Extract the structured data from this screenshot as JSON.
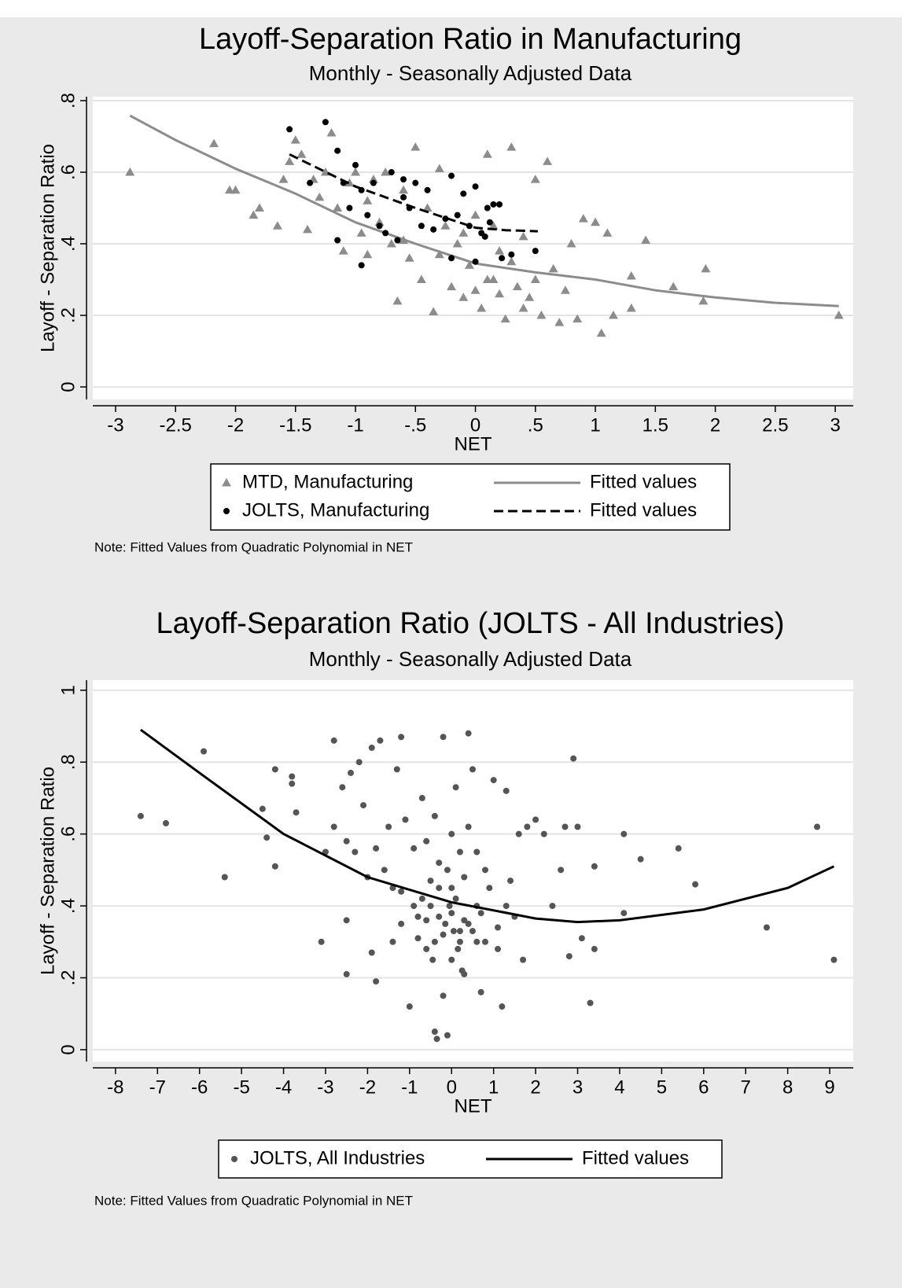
{
  "chart_data": [
    {
      "type": "scatter",
      "title": "Layoff-Separation Ratio in Manufacturing",
      "subtitle": "Monthly - Seasonally Adjusted Data",
      "x_label": "NET",
      "y_label": "Layoff - Separation Ratio",
      "note": "Note: Fitted Values from Quadratic Polynomial in NET",
      "xlim": [
        -3.19,
        3.15
      ],
      "ylim": [
        -0.035,
        0.811
      ],
      "xticks": [
        -3,
        {
          "value": -2.5,
          "label": "-2.5"
        },
        -2,
        {
          "value": -1.5,
          "label": "-1.5"
        },
        -1,
        {
          "value": -0.5,
          "label": "-.5"
        },
        0,
        {
          "value": 0.5,
          "label": ".5"
        },
        1,
        1.5,
        2,
        2.5,
        3
      ],
      "yticks": [
        0,
        {
          "value": 0.2,
          "label": ".2"
        },
        {
          "value": 0.4,
          "label": ".4"
        },
        {
          "value": 0.6,
          "label": ".6"
        },
        {
          "value": 0.8,
          "label": ".8"
        }
      ],
      "grid": true,
      "series": [
        {
          "name": "MTD, Manufacturing",
          "type": "scatter",
          "marker": "triangle",
          "color": "#8c8c8c",
          "x": [
            -2.88,
            -2.18,
            -2.05,
            -2.0,
            -1.85,
            -1.8,
            -1.65,
            -1.6,
            -1.55,
            -1.5,
            -1.45,
            -1.4,
            -1.35,
            -1.3,
            -1.25,
            -1.2,
            -1.15,
            -1.1,
            -1.05,
            -1.0,
            -0.95,
            -0.9,
            -0.85,
            -0.8,
            -0.75,
            -0.7,
            -0.65,
            -0.6,
            -0.55,
            -0.5,
            -0.45,
            -0.4,
            -0.35,
            -0.3,
            -0.25,
            -0.2,
            -0.15,
            -0.1,
            -0.05,
            0.0,
            0.05,
            0.1,
            0.15,
            0.2,
            0.25,
            0.3,
            0.35,
            0.4,
            0.45,
            0.5,
            0.55,
            0.6,
            0.65,
            0.7,
            0.75,
            0.8,
            0.85,
            0.9,
            1.0,
            1.05,
            1.1,
            1.15,
            1.3,
            1.3,
            1.42,
            1.65,
            1.92,
            1.9,
            3.03,
            -0.3,
            0.1,
            0.2,
            -0.1,
            0.3,
            0.0,
            0.4,
            -0.6,
            -0.9,
            0.15,
            0.5
          ],
          "values": [
            0.6,
            0.68,
            0.55,
            0.55,
            0.48,
            0.5,
            0.45,
            0.58,
            0.63,
            0.69,
            0.65,
            0.44,
            0.58,
            0.53,
            0.6,
            0.71,
            0.5,
            0.38,
            0.57,
            0.6,
            0.43,
            0.52,
            0.58,
            0.46,
            0.6,
            0.4,
            0.24,
            0.55,
            0.36,
            0.67,
            0.3,
            0.5,
            0.21,
            0.61,
            0.45,
            0.28,
            0.4,
            0.25,
            0.34,
            0.48,
            0.22,
            0.65,
            0.3,
            0.38,
            0.19,
            0.67,
            0.28,
            0.42,
            0.25,
            0.58,
            0.2,
            0.63,
            0.33,
            0.18,
            0.27,
            0.4,
            0.19,
            0.47,
            0.46,
            0.15,
            0.43,
            0.2,
            0.31,
            0.22,
            0.41,
            0.28,
            0.33,
            0.24,
            0.2,
            0.37,
            0.3,
            0.26,
            0.43,
            0.35,
            0.27,
            0.22,
            0.41,
            0.37,
            0.45,
            0.3
          ]
        },
        {
          "name": "Fitted values",
          "type": "line",
          "dash": "solid",
          "color": "#8c8c8c",
          "x": [
            -2.88,
            -2.5,
            -2,
            -1.5,
            -1,
            -0.5,
            0,
            0.5,
            1,
            1.5,
            2,
            2.5,
            3.03
          ],
          "values": [
            0.758,
            0.69,
            0.61,
            0.54,
            0.46,
            0.4,
            0.345,
            0.32,
            0.3,
            0.27,
            0.25,
            0.235,
            0.226
          ]
        },
        {
          "name": "JOLTS, Manufacturing",
          "type": "scatter",
          "marker": "circle",
          "color": "#000000",
          "x": [
            -1.55,
            -1.25,
            -1.38,
            -1.15,
            -1.1,
            -1.05,
            -1.0,
            -0.95,
            -0.9,
            -0.85,
            -0.8,
            -0.75,
            -0.7,
            -0.65,
            -0.6,
            -0.55,
            -0.5,
            -0.45,
            -0.4,
            -0.35,
            -0.25,
            -0.2,
            -0.15,
            -0.1,
            -0.05,
            0.0,
            0.05,
            0.1,
            0.12,
            0.15,
            0.2,
            0.22,
            0.3,
            0.5,
            -0.95,
            -1.15,
            -0.2,
            0.0,
            0.08,
            -0.6
          ],
          "values": [
            0.72,
            0.74,
            0.57,
            0.66,
            0.57,
            0.5,
            0.62,
            0.55,
            0.48,
            0.57,
            0.45,
            0.43,
            0.6,
            0.41,
            0.58,
            0.5,
            0.57,
            0.45,
            0.55,
            0.44,
            0.47,
            0.59,
            0.48,
            0.54,
            0.45,
            0.56,
            0.43,
            0.5,
            0.46,
            0.51,
            0.51,
            0.36,
            0.37,
            0.38,
            0.34,
            0.41,
            0.36,
            0.35,
            0.42,
            0.53
          ]
        },
        {
          "name": "Fitted values",
          "type": "line",
          "dash": "dashed",
          "color": "#000000",
          "x": [
            -1.55,
            -1,
            -0.5,
            0,
            0.25,
            0.52
          ],
          "values": [
            0.65,
            0.56,
            0.5,
            0.445,
            0.438,
            0.435
          ]
        }
      ]
    },
    {
      "type": "scatter",
      "title": "Layoff-Separation Ratio (JOLTS - All Industries)",
      "subtitle": "Monthly - Seasonally Adjusted Data",
      "x_label": "NET",
      "y_label": "Layoff - Separation Ratio",
      "note": "Note: Fitted Values from Quadratic Polynomial in NET",
      "xlim": [
        -8.54,
        9.56
      ],
      "ylim": [
        -0.033,
        1.028
      ],
      "xticks": [
        -8,
        -7,
        -6,
        -5,
        -4,
        -3,
        -2,
        -1,
        0,
        1,
        2,
        3,
        4,
        5,
        6,
        7,
        8,
        9
      ],
      "yticks": [
        0,
        {
          "value": 0.2,
          "label": ".2"
        },
        {
          "value": 0.4,
          "label": ".4"
        },
        {
          "value": 0.6,
          "label": ".6"
        },
        {
          "value": 0.8,
          "label": ".8"
        },
        1
      ],
      "grid": true,
      "series": [
        {
          "name": "JOLTS, All Industries",
          "type": "scatter",
          "marker": "circle",
          "color": "#555555",
          "x": [
            -7.4,
            -6.8,
            -5.9,
            -5.4,
            -4.5,
            -4.4,
            -4.2,
            -4.2,
            -3.8,
            -3.8,
            -3.7,
            -3.1,
            -3.0,
            -2.8,
            -2.8,
            -2.6,
            -2.5,
            -2.5,
            -2.5,
            -2.4,
            -2.3,
            -2.2,
            -2.1,
            -2.0,
            -1.9,
            -1.9,
            -1.8,
            -1.8,
            -1.7,
            -1.6,
            -1.5,
            -1.4,
            -1.3,
            -1.2,
            -1.2,
            -1.1,
            -1.0,
            -0.9,
            -0.8,
            -0.7,
            -0.6,
            -0.5,
            -0.4,
            -0.35,
            -0.3,
            -0.2,
            -0.2,
            -0.1,
            0.0,
            0.1,
            0.2,
            0.3,
            0.4,
            0.5,
            0.6,
            0.7,
            0.8,
            1.0,
            1.1,
            1.2,
            1.3,
            1.4,
            1.5,
            1.6,
            1.7,
            1.8,
            2.0,
            2.2,
            2.4,
            2.6,
            2.7,
            2.8,
            2.9,
            3.0,
            3.1,
            3.3,
            3.4,
            3.4,
            4.1,
            4.1,
            4.5,
            5.4,
            5.8,
            7.5,
            8.7,
            9.1,
            -0.5,
            -0.3,
            -0.2,
            0,
            0.1,
            0.2,
            0.3,
            0.4,
            -0.4,
            0.5,
            -0.6,
            0.6,
            -0.1,
            0.2,
            0.0,
            -0.7,
            0.7,
            0.9,
            -0.9,
            1.1,
            -1.2,
            0.3,
            -0.3,
            0.0,
            0.15,
            -0.15,
            0.05,
            -0.05,
            0.25,
            -0.45,
            0.8,
            -0.8,
            1.3,
            -1.4,
            0.4,
            -0.4,
            0.6,
            -0.6
          ],
          "values": [
            0.65,
            0.63,
            0.83,
            0.48,
            0.67,
            0.59,
            0.78,
            0.51,
            0.76,
            0.74,
            0.66,
            0.3,
            0.55,
            0.62,
            0.86,
            0.73,
            0.58,
            0.36,
            0.21,
            0.77,
            0.55,
            0.8,
            0.68,
            0.48,
            0.84,
            0.27,
            0.56,
            0.19,
            0.86,
            0.5,
            0.62,
            0.3,
            0.78,
            0.87,
            0.44,
            0.64,
            0.12,
            0.56,
            0.37,
            0.7,
            0.28,
            0.47,
            0.05,
            0.03,
            0.37,
            0.87,
            0.15,
            0.04,
            0.6,
            0.73,
            0.33,
            0.21,
            0.88,
            0.78,
            0.4,
            0.16,
            0.5,
            0.75,
            0.28,
            0.12,
            0.72,
            0.47,
            0.37,
            0.6,
            0.25,
            0.62,
            0.64,
            0.6,
            0.4,
            0.5,
            0.62,
            0.26,
            0.81,
            0.62,
            0.31,
            0.13,
            0.51,
            0.28,
            0.38,
            0.6,
            0.53,
            0.56,
            0.46,
            0.34,
            0.62,
            0.25,
            0.4,
            0.45,
            0.32,
            0.38,
            0.42,
            0.3,
            0.36,
            0.35,
            0.3,
            0.33,
            0.36,
            0.3,
            0.5,
            0.55,
            0.25,
            0.42,
            0.38,
            0.45,
            0.4,
            0.34,
            0.35,
            0.48,
            0.52,
            0.45,
            0.28,
            0.35,
            0.33,
            0.4,
            0.22,
            0.25,
            0.3,
            0.31,
            0.4,
            0.45,
            0.62,
            0.65,
            0.55,
            0.58
          ]
        },
        {
          "name": "Fitted values",
          "type": "line",
          "dash": "solid",
          "color": "#000000",
          "x": [
            -7.4,
            -6,
            -4,
            -2,
            0,
            2,
            3,
            4,
            6,
            8,
            9.1
          ],
          "values": [
            0.89,
            0.77,
            0.6,
            0.48,
            0.41,
            0.365,
            0.355,
            0.36,
            0.39,
            0.45,
            0.51
          ]
        }
      ]
    }
  ]
}
